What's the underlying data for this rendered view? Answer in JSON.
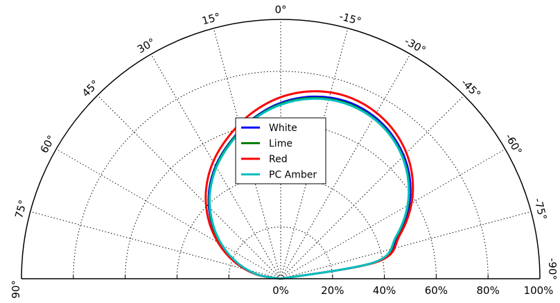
{
  "chart_data": {
    "type": "polar-half",
    "title": "",
    "r_ticks": [
      0,
      20,
      40,
      60,
      80,
      100
    ],
    "r_tick_labels": [
      "0%",
      "20%",
      "40%",
      "60%",
      "80%",
      "100%"
    ],
    "r_max": 100,
    "angle_ticks": [
      90,
      75,
      60,
      45,
      30,
      15,
      0,
      -15,
      -30,
      -45,
      -60,
      -75,
      -90
    ],
    "angle_tick_labels": [
      "90°",
      "75°",
      "60°",
      "45°",
      "30°",
      "15°",
      "0°",
      "-15°",
      "-30°",
      "-45°",
      "-60°",
      "-75°",
      "-90°"
    ],
    "grid": true,
    "legend": {
      "placement": "center"
    },
    "series": [
      {
        "name": "White",
        "color": "#0000ff",
        "theta": [
          90,
          80,
          70,
          60,
          50,
          40,
          30,
          20,
          10,
          0,
          -10,
          -20,
          -30,
          -40,
          -50,
          -60,
          -70,
          -80,
          -90
        ],
        "r": [
          0,
          9.2,
          18.1,
          26.7,
          35.1,
          43.1,
          50.2,
          56.4,
          62.6,
          67.8,
          71.3,
          72.9,
          72.2,
          69.3,
          64.4,
          57.3,
          48.0,
          37.3,
          0
        ]
      },
      {
        "name": "Lime",
        "color": "#008000",
        "theta": [
          90,
          80,
          70,
          60,
          50,
          40,
          30,
          20,
          10,
          0,
          -10,
          -20,
          -30,
          -40,
          -50,
          -60,
          -70,
          -80,
          -90
        ],
        "r": [
          0,
          9.0,
          17.8,
          26.5,
          34.8,
          42.7,
          49.9,
          56.2,
          62.3,
          67.4,
          70.8,
          72.3,
          71.6,
          68.8,
          63.8,
          56.7,
          47.5,
          36.9,
          0
        ]
      },
      {
        "name": "Red",
        "color": "#ff0000",
        "theta": [
          90,
          80,
          70,
          60,
          50,
          40,
          30,
          20,
          10,
          0,
          -10,
          -20,
          -30,
          -40,
          -50,
          -60,
          -70,
          -80,
          -90
        ],
        "r": [
          0,
          9.6,
          18.9,
          27.9,
          36.6,
          44.8,
          52.1,
          58.5,
          64.8,
          70.0,
          73.4,
          74.8,
          73.9,
          70.9,
          65.7,
          58.3,
          48.8,
          38.0,
          0
        ]
      },
      {
        "name": "PC Amber",
        "color": "#00bfbf",
        "theta": [
          90,
          80,
          70,
          60,
          50,
          40,
          30,
          20,
          10,
          0,
          -10,
          -20,
          -30,
          -40,
          -50,
          -60,
          -70,
          -80,
          -90
        ],
        "r": [
          0,
          8.9,
          17.6,
          26.2,
          34.5,
          42.5,
          49.6,
          55.9,
          62.1,
          67.1,
          70.5,
          72.0,
          71.4,
          68.6,
          63.6,
          56.5,
          47.3,
          36.8,
          0
        ]
      }
    ]
  }
}
